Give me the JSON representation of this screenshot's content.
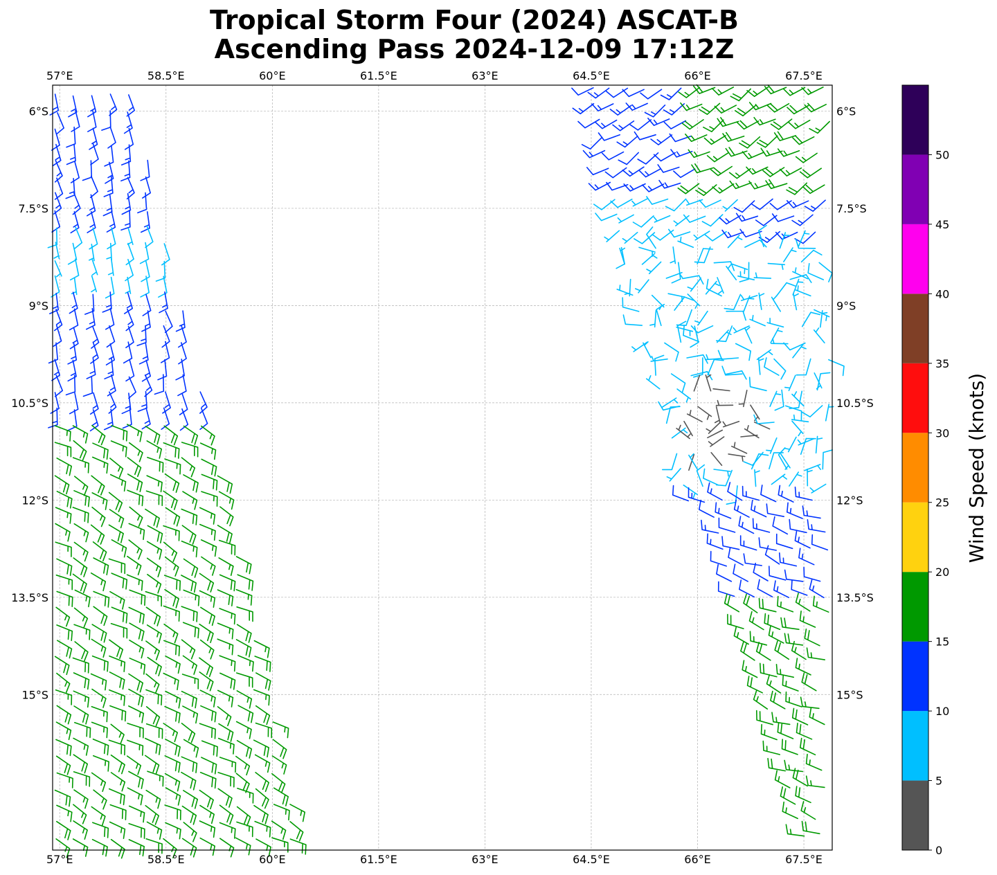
{
  "title_line1": "Tropical Storm Four (2024) ASCAT-B",
  "title_line2": "Ascending Pass 2024-12-09 17:12Z",
  "map": {
    "lon_range": [
      56.9,
      67.9
    ],
    "lat_range": [
      -17.4,
      -5.6
    ],
    "lon_ticks": [
      57,
      58.5,
      60,
      61.5,
      63,
      64.5,
      66,
      67.5
    ],
    "lon_tick_labels": [
      "57°E",
      "58.5°E",
      "60°E",
      "61.5°E",
      "63°E",
      "64.5°E",
      "66°E",
      "67.5°E"
    ],
    "lat_ticks": [
      -6,
      -7.5,
      -9,
      -10.5,
      -12,
      -13.5,
      -15
    ],
    "lat_tick_labels": [
      "6°S",
      "7.5°S",
      "9°S",
      "10.5°S",
      "12°S",
      "13.5°S",
      "15°S"
    ],
    "gridlines": true,
    "plot_type": "wind barbs (ASCAT scatterometer swaths)"
  },
  "colorbar": {
    "label": "Wind Speed (knots)",
    "levels": [
      0,
      5,
      10,
      15,
      20,
      25,
      30,
      35,
      40,
      45,
      50,
      55
    ],
    "tick_values": [
      0,
      5,
      10,
      15,
      20,
      25,
      30,
      35,
      40,
      45,
      50
    ],
    "tick_labels": [
      "0",
      "5",
      "10",
      "15",
      "20",
      "25",
      "30",
      "35",
      "40",
      "45",
      "50"
    ],
    "colors": [
      "#555555",
      "#00bfff",
      "#0033ff",
      "#009900",
      "#ffd20f",
      "#ff8c00",
      "#ff0d0d",
      "#7f3f26",
      "#ff00ee",
      "#8000b3",
      "#2e0059"
    ]
  },
  "chart_data": {
    "type": "wind-barb map",
    "west_swath": [
      {
        "lat_range": [
          -5.6,
          -7.6
        ],
        "speed_kt": [
          10,
          15
        ]
      },
      {
        "lat_range": [
          -7.6,
          -8.7
        ],
        "speed_kt": [
          5,
          10
        ]
      },
      {
        "lat_range": [
          -8.7,
          -10.6
        ],
        "speed_kt": [
          10,
          15
        ]
      },
      {
        "lat_range": [
          -10.6,
          -17.4
        ],
        "speed_kt": [
          15,
          20
        ]
      }
    ],
    "east_swath": [
      {
        "lat_range": [
          -5.6,
          -7.2
        ],
        "speed_kt": [
          10,
          20
        ]
      },
      {
        "lat_range": [
          -7.2,
          -11.8
        ],
        "speed_kt": [
          5,
          10
        ]
      },
      {
        "lat_range": [
          -10.3,
          -11.4
        ],
        "speed_kt": [
          0,
          5
        ],
        "note": "calm core"
      },
      {
        "lat_range": [
          -11.8,
          -13.5
        ],
        "speed_kt": [
          10,
          15
        ]
      },
      {
        "lat_range": [
          -13.5,
          -17.4
        ],
        "speed_kt": [
          15,
          20
        ]
      }
    ]
  }
}
